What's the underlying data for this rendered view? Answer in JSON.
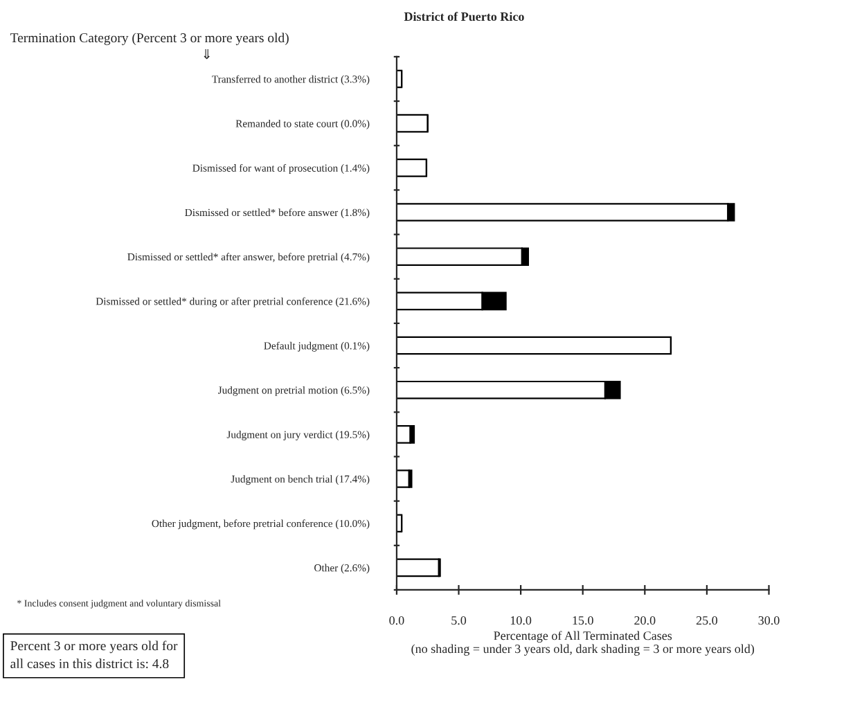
{
  "chart_data": {
    "type": "bar",
    "orientation": "horizontal",
    "stacked": true,
    "title": "District of Puerto Rico",
    "ylabel": "Termination Category (Percent 3 or more years old)",
    "xlabel": "Percentage of All Terminated Cases\n(no shading = under 3 years old, dark shading = 3 or more years old)",
    "categories": [
      "Transferred to another district (3.3%)",
      "Remanded to state court (0.0%)",
      "Dismissed for want of prosecution (1.4%)",
      "Dismissed or settled* before answer (1.8%)",
      "Dismissed or settled* after answer, before pretrial (4.7%)",
      "Dismissed or settled* during or after pretrial conference (21.6%)",
      "Default judgment (0.1%)",
      "Judgment on pretrial motion (6.5%)",
      "Judgment on jury verdict (19.5%)",
      "Judgment on bench trial (17.4%)",
      "Other judgment, before pretrial conference (10.0%)",
      "Other (2.6%)"
    ],
    "series": [
      {
        "color": "#ffffff",
        "values": [
          0.4,
          2.5,
          2.4,
          26.7,
          10.1,
          6.9,
          22.1,
          16.8,
          1.1,
          1.0,
          0.4,
          3.4
        ]
      },
      {
        "color": "#000000",
        "values": [
          0.0,
          0.0,
          0.0,
          0.5,
          0.5,
          1.9,
          0.0,
          1.2,
          0.3,
          0.2,
          0.0,
          0.1
        ]
      }
    ],
    "xlim": [
      0,
      30
    ],
    "xticks": [
      {
        "value": 0,
        "label": "0.0"
      },
      {
        "value": 5,
        "label": "5.0"
      },
      {
        "value": 10,
        "label": "10.0"
      },
      {
        "value": 15,
        "label": "15.0"
      },
      {
        "value": 20,
        "label": "20.0"
      },
      {
        "value": 25,
        "label": "25.0"
      },
      {
        "value": 30,
        "label": "30.0"
      }
    ],
    "grid": false,
    "legend": false,
    "annotations": [
      "⇓",
      "* Includes consent judgment and voluntary dismissal",
      "Percent 3 or more years old for\nall cases in this district is: 4.8"
    ]
  }
}
